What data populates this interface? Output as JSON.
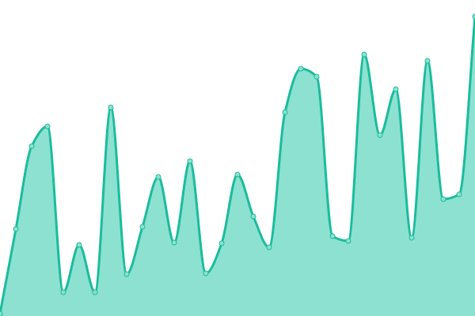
{
  "chart_data": {
    "type": "area",
    "title": "",
    "xlabel": "",
    "ylabel": "",
    "x": [
      0,
      1,
      2,
      3,
      4,
      5,
      6,
      7,
      8,
      9,
      10,
      11,
      12,
      13,
      14,
      15,
      16,
      17,
      18,
      19,
      20,
      21,
      22,
      23,
      24,
      25,
      26,
      27,
      28,
      29,
      30
    ],
    "series": [
      {
        "values": [
          3,
          110,
          215,
          240,
          30,
          90,
          30,
          264,
          53,
          113,
          176,
          93,
          196,
          54,
          92,
          179,
          126,
          87,
          258,
          313,
          303,
          101,
          95,
          331,
          229,
          287,
          99,
          323,
          148,
          154,
          379
        ]
      }
    ],
    "xlim": [
      0,
      30
    ],
    "ylim": [
      0,
      400
    ],
    "grid": false,
    "axes_visible": false,
    "curve": "smooth-monotone",
    "markers": true,
    "colors": {
      "line": "#1abc9c",
      "fill": "#8de1d0",
      "marker_fill": "#8de1d0",
      "marker_stroke": "#1abc9c"
    }
  }
}
